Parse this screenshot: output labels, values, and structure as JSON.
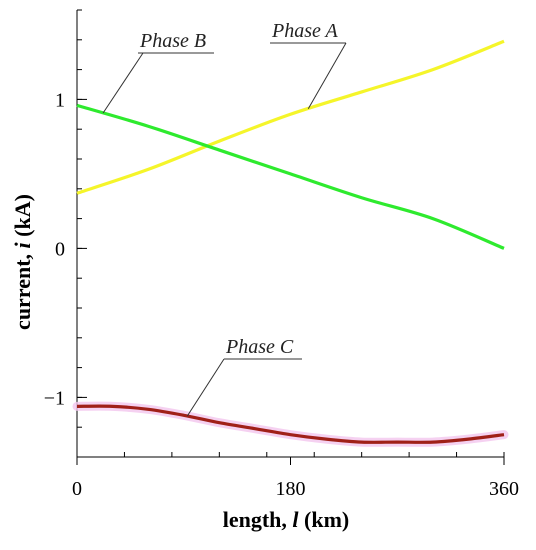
{
  "chart_data": {
    "type": "line",
    "title": "",
    "xlabel_prefix": "length, ",
    "xlabel_symbol": "l",
    "xlabel_suffix": " (km)",
    "ylabel_prefix": "current, ",
    "ylabel_symbol": "i",
    "ylabel_suffix": " (kA)",
    "xlim": [
      0,
      360
    ],
    "ylim": [
      -1.4,
      1.6
    ],
    "x_ticks": [
      0,
      180,
      360
    ],
    "x_tick_labels": [
      "0",
      "180",
      "360"
    ],
    "y_ticks": [
      -1,
      0,
      1
    ],
    "y_tick_labels": [
      "−1",
      "0",
      "1"
    ],
    "grid": false,
    "legend": "none (series labeled by callouts)",
    "series": [
      {
        "name": "Phase A",
        "color": "#f5f52a",
        "x": [
          0,
          60,
          120,
          180,
          240,
          300,
          360
        ],
        "y": [
          0.37,
          0.53,
          0.72,
          0.9,
          1.05,
          1.2,
          1.39
        ]
      },
      {
        "name": "Phase B",
        "color": "#2eea2e",
        "x": [
          0,
          60,
          120,
          180,
          240,
          300,
          360
        ],
        "y": [
          0.96,
          0.82,
          0.66,
          0.5,
          0.34,
          0.2,
          0.0
        ]
      },
      {
        "name": "Phase C",
        "color": "#a02018",
        "halo_color": "#f3c6ee",
        "x": [
          0,
          30,
          60,
          90,
          120,
          150,
          180,
          210,
          240,
          270,
          300,
          330,
          360
        ],
        "y": [
          -1.06,
          -1.06,
          -1.08,
          -1.12,
          -1.17,
          -1.21,
          -1.25,
          -1.28,
          -1.3,
          -1.3,
          -1.3,
          -1.28,
          -1.25
        ]
      }
    ]
  }
}
